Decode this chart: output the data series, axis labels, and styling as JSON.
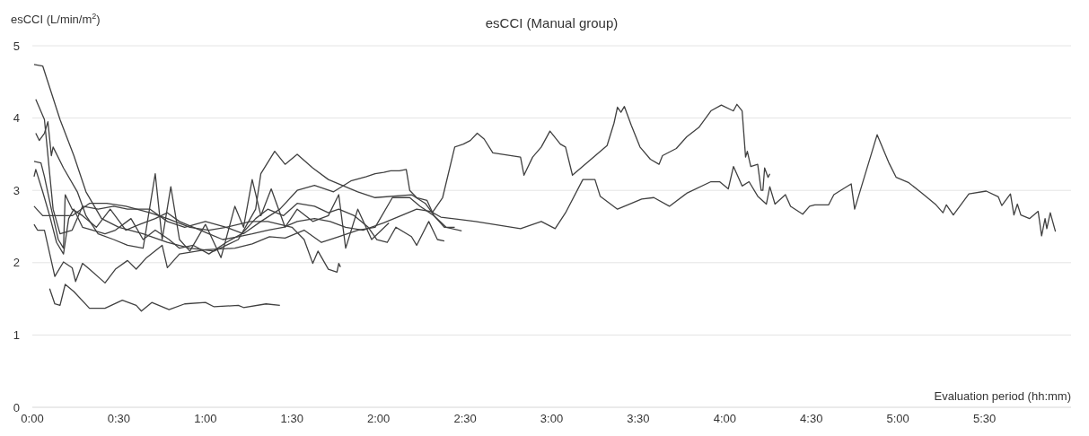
{
  "chart_data": {
    "type": "line",
    "title": "esCCI (Manual group)",
    "ylabel": "esCCI (L/min/m$^{2}$)",
    "xlabel": "Evaluation period (hh:mm)",
    "xlim": [
      0,
      6
    ],
    "ylim": [
      0,
      5
    ],
    "yticks": [
      0,
      1,
      2,
      3,
      4,
      5
    ],
    "xticks": [
      {
        "value": 0,
        "label": "0:00"
      },
      {
        "value": 0.5,
        "label": "0:30"
      },
      {
        "value": 1,
        "label": "1:00"
      },
      {
        "value": 1.5,
        "label": "1:30"
      },
      {
        "value": 2,
        "label": "2:00"
      },
      {
        "value": 2.5,
        "label": "2:30"
      },
      {
        "value": 3,
        "label": "3:00"
      },
      {
        "value": 3.5,
        "label": "3:30"
      },
      {
        "value": 4,
        "label": "4:00"
      },
      {
        "value": 4.5,
        "label": "4:30"
      },
      {
        "value": 5,
        "label": "5:00"
      },
      {
        "value": 5.5,
        "label": "5:30"
      }
    ],
    "grid": "y",
    "line_style": "solid",
    "series": [
      {
        "color": "#404040",
        "x": [
          0.01,
          0.05,
          0.07,
          0.11,
          0.15,
          0.18,
          0.19,
          0.23,
          0.29,
          0.37,
          0.45,
          0.54,
          0.62,
          0.71,
          0.78,
          0.85,
          0.93,
          1.02,
          1.1,
          1.19,
          1.27,
          1.36,
          1.45,
          1.53,
          1.63,
          1.72,
          1.81,
          1.91,
          2.03,
          2.13,
          2.22,
          2.3,
          2.36,
          2.56,
          2.82,
          2.94,
          3.02,
          3.08,
          3.18,
          3.25,
          3.28,
          3.38,
          3.52,
          3.59,
          3.68,
          3.78,
          3.92,
          3.97,
          4.02,
          4.05,
          4.08,
          4.1,
          4.14,
          4.19,
          4.24,
          4.26,
          4.29,
          4.35,
          4.38,
          4.45,
          4.49,
          4.52,
          4.6,
          4.63,
          4.69,
          4.73,
          4.75,
          4.88,
          4.95,
          4.99,
          5.06,
          5.14,
          5.22,
          5.26,
          5.28,
          5.32,
          5.41,
          5.51,
          5.58,
          5.6,
          5.65,
          5.67,
          5.69,
          5.71,
          5.76,
          5.81,
          5.83,
          5.85,
          5.86,
          5.88,
          5.91
        ],
        "values": [
          3.4,
          3.38,
          3.19,
          2.74,
          2.32,
          2.2,
          2.94,
          2.74,
          2.65,
          2.49,
          2.74,
          2.45,
          2.53,
          2.61,
          2.69,
          2.57,
          2.49,
          2.4,
          2.32,
          2.36,
          2.4,
          2.45,
          2.49,
          2.57,
          2.61,
          2.57,
          2.49,
          2.45,
          2.55,
          2.65,
          2.74,
          2.71,
          2.63,
          2.57,
          2.47,
          2.57,
          2.47,
          2.69,
          3.15,
          3.15,
          2.92,
          2.74,
          2.88,
          2.9,
          2.78,
          2.96,
          3.12,
          3.12,
          3.02,
          3.33,
          3.17,
          3.06,
          3.12,
          2.92,
          2.81,
          3.05,
          2.81,
          2.94,
          2.78,
          2.67,
          2.78,
          2.8,
          2.8,
          2.94,
          3.03,
          3.09,
          2.74,
          3.77,
          3.37,
          3.18,
          3.11,
          2.96,
          2.8,
          2.69,
          2.8,
          2.66,
          2.95,
          2.99,
          2.91,
          2.79,
          2.95,
          2.66,
          2.81,
          2.66,
          2.61,
          2.71,
          2.37,
          2.61,
          2.47,
          2.69,
          2.43
        ]
      },
      {
        "color": "#404040",
        "x": [
          0.01,
          0.06,
          0.16,
          0.24,
          0.31,
          0.4,
          0.5,
          0.64,
          0.78,
          0.91,
          1.05,
          1.19,
          1.29,
          1.32,
          1.4,
          1.46,
          1.53,
          1.62,
          1.71,
          1.79,
          1.88,
          1.98,
          2.19,
          2.27,
          2.31,
          2.37,
          2.44,
          2.49,
          2.53,
          2.57,
          2.61,
          2.66,
          2.82,
          2.84,
          2.89,
          2.94,
          2.99,
          3.05,
          3.08,
          3.12,
          3.32,
          3.36,
          3.38,
          3.4,
          3.42,
          3.46,
          3.51,
          3.57,
          3.62,
          3.64,
          3.72,
          3.78,
          3.85,
          3.92,
          3.98,
          4.04,
          4.05,
          4.07,
          4.1,
          4.12,
          4.13,
          4.15,
          4.19,
          4.21,
          4.22,
          4.23,
          4.25,
          4.26
        ],
        "values": [
          4.74,
          4.72,
          3.98,
          3.48,
          2.98,
          2.61,
          2.49,
          2.4,
          2.28,
          2.2,
          2.16,
          2.32,
          2.74,
          3.23,
          3.54,
          3.36,
          3.5,
          3.31,
          3.15,
          3.07,
          2.98,
          2.9,
          2.94,
          2.82,
          2.69,
          2.9,
          3.6,
          3.64,
          3.69,
          3.79,
          3.71,
          3.52,
          3.46,
          3.21,
          3.46,
          3.6,
          3.82,
          3.64,
          3.6,
          3.21,
          3.62,
          3.93,
          4.15,
          4.08,
          4.16,
          3.9,
          3.6,
          3.43,
          3.36,
          3.48,
          3.58,
          3.74,
          3.87,
          4.1,
          4.18,
          4.11,
          4.1,
          4.19,
          4.1,
          3.46,
          3.54,
          3.33,
          3.36,
          3.0,
          3.0,
          3.31,
          3.18,
          3.23
        ]
      },
      {
        "color": "#404040",
        "x": [
          0.1,
          0.13,
          0.16,
          0.19,
          0.24,
          0.33,
          0.42,
          0.52,
          0.6,
          0.63,
          0.69,
          0.79,
          0.88,
          1.0,
          1.05,
          1.19,
          1.22,
          1.35,
          1.43
        ],
        "values": [
          1.64,
          1.43,
          1.41,
          1.7,
          1.6,
          1.37,
          1.37,
          1.48,
          1.41,
          1.33,
          1.45,
          1.35,
          1.43,
          1.45,
          1.39,
          1.41,
          1.38,
          1.43,
          1.41
        ]
      },
      {
        "color": "#404040",
        "x": [
          0.01,
          0.03,
          0.07,
          0.13,
          0.18,
          0.23,
          0.25,
          0.29,
          0.33,
          0.42,
          0.48,
          0.55,
          0.6,
          0.66,
          0.75,
          0.78,
          0.85,
          1.0,
          1.17,
          1.27,
          1.37,
          1.46,
          1.57,
          1.67,
          1.77,
          1.88,
          1.98,
          2.08,
          2.18,
          2.24,
          2.32,
          2.39,
          2.48
        ],
        "values": [
          2.53,
          2.45,
          2.45,
          1.81,
          2.01,
          1.93,
          1.74,
          1.99,
          1.91,
          1.72,
          1.91,
          2.03,
          1.91,
          2.07,
          2.24,
          1.93,
          2.12,
          2.18,
          2.2,
          2.26,
          2.36,
          2.34,
          2.45,
          2.28,
          2.36,
          2.45,
          2.49,
          2.9,
          2.9,
          2.78,
          2.65,
          2.49,
          2.44
        ]
      },
      {
        "color": "#404040",
        "x": [
          0.02,
          0.07,
          0.12,
          0.16,
          0.23,
          0.29,
          0.38,
          0.47,
          0.55,
          0.68,
          0.78,
          0.88,
          1.0,
          1.12,
          1.22,
          1.32,
          1.43,
          1.53,
          1.63,
          1.74,
          1.84,
          1.93,
          1.98,
          2.03,
          2.07,
          2.12,
          2.16,
          2.18,
          2.22,
          2.28,
          2.32,
          2.38,
          2.44
        ],
        "values": [
          4.26,
          3.98,
          2.74,
          2.4,
          2.45,
          2.78,
          2.74,
          2.78,
          2.74,
          2.74,
          2.57,
          2.49,
          2.57,
          2.49,
          2.4,
          2.57,
          2.74,
          3.0,
          3.07,
          2.98,
          3.13,
          3.19,
          3.23,
          3.25,
          3.27,
          3.27,
          3.29,
          3.0,
          2.9,
          2.86,
          2.65,
          2.49,
          2.49
        ]
      },
      {
        "color": "#404040",
        "x": [
          0.02,
          0.04,
          0.07,
          0.09,
          0.11,
          0.12,
          0.18,
          0.26,
          0.31,
          0.38,
          0.47,
          0.55,
          0.64,
          0.71,
          0.75,
          0.8,
          0.85,
          0.91,
          1.0,
          1.09,
          1.17,
          1.22,
          1.27,
          1.32,
          1.38,
          1.46,
          1.53,
          1.62,
          1.71,
          1.77,
          1.81,
          1.88,
          1.96,
          2.06
        ],
        "values": [
          3.79,
          3.69,
          3.79,
          3.95,
          3.48,
          3.6,
          3.31,
          2.98,
          2.65,
          2.4,
          2.32,
          2.24,
          2.2,
          3.23,
          2.32,
          3.05,
          2.32,
          2.16,
          2.53,
          2.07,
          2.78,
          2.49,
          3.15,
          2.65,
          3.02,
          2.49,
          2.74,
          2.57,
          2.65,
          2.94,
          2.2,
          2.74,
          2.32,
          2.55
        ]
      },
      {
        "color": "#404040",
        "x": [
          0.01,
          0.02,
          0.06,
          0.1,
          0.14,
          0.18,
          0.21,
          0.24,
          0.29,
          0.42,
          0.48,
          0.57,
          0.64,
          0.71,
          0.79,
          0.85,
          0.93,
          1.02,
          1.12,
          1.21,
          1.29,
          1.36,
          1.45,
          1.53,
          1.63,
          1.71,
          1.77,
          1.86,
          1.94,
          1.99,
          2.05,
          2.1,
          2.19,
          2.22,
          2.29,
          2.34,
          2.38
        ],
        "values": [
          3.19,
          3.29,
          2.98,
          2.65,
          2.28,
          2.12,
          2.61,
          2.74,
          2.49,
          2.4,
          2.45,
          2.61,
          2.32,
          2.45,
          2.32,
          2.2,
          2.24,
          2.12,
          2.28,
          2.4,
          2.61,
          2.74,
          2.65,
          2.82,
          2.78,
          2.69,
          2.74,
          2.65,
          2.49,
          2.32,
          2.28,
          2.49,
          2.36,
          2.24,
          2.57,
          2.32,
          2.3
        ]
      },
      {
        "color": "#404040",
        "x": [
          0.01,
          0.06,
          0.11,
          0.23,
          0.33,
          0.43,
          0.54,
          0.68,
          0.78,
          0.91,
          1.02,
          1.12,
          1.26,
          1.36,
          1.5,
          1.57,
          1.62,
          1.65,
          1.71,
          1.76,
          1.77,
          1.78
        ],
        "values": [
          2.78,
          2.65,
          2.65,
          2.65,
          2.82,
          2.82,
          2.78,
          2.69,
          2.61,
          2.49,
          2.45,
          2.49,
          2.57,
          2.57,
          2.49,
          2.32,
          1.99,
          2.16,
          1.91,
          1.87,
          1.99,
          1.94
        ]
      }
    ]
  }
}
